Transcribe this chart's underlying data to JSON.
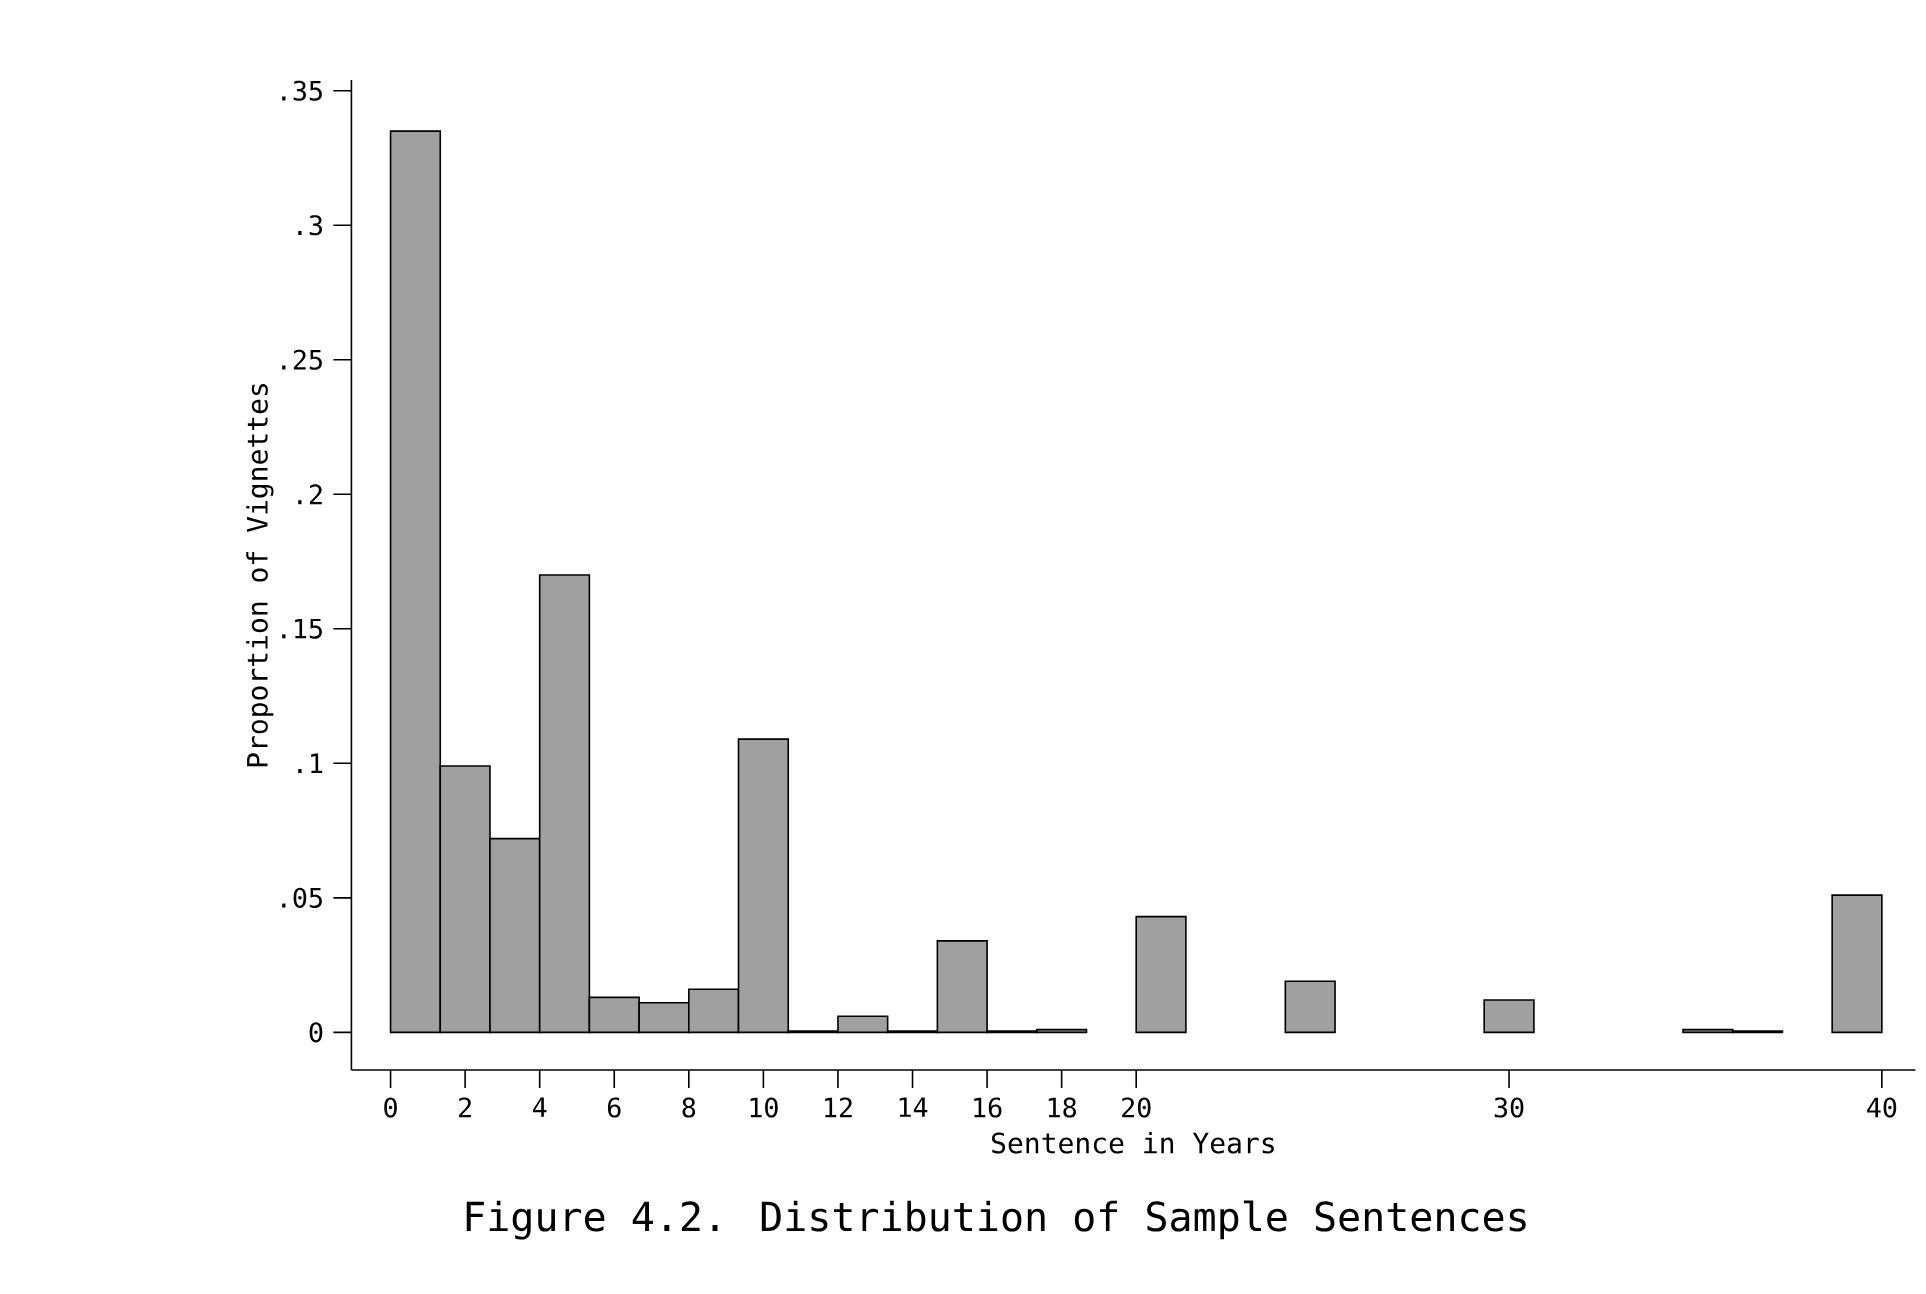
{
  "chart_data": {
    "type": "histogram",
    "title": "Figure 4.2. Distribution of Sample Sentences",
    "xlabel": "Sentence in Years",
    "ylabel": "Proportion of Vignettes",
    "bins": [
      0,
      1.333,
      2.667,
      4,
      5.333,
      6.667,
      8,
      9.333,
      10.667,
      12,
      13.333,
      14.667,
      16,
      17.333,
      18.667,
      20,
      21.333,
      22.667,
      24,
      25.333,
      26.667,
      28,
      29.333,
      30.667,
      32,
      33.333,
      34.667,
      36,
      37.333,
      38.667,
      40
    ],
    "values": [
      0.335,
      0.099,
      0.072,
      0.17,
      0.013,
      0.011,
      0.016,
      0.109,
      0.0005,
      0.006,
      0.0005,
      0.034,
      0.0005,
      0.001,
      0,
      0.043,
      0,
      0,
      0.019,
      0,
      0,
      0,
      0.012,
      0,
      0,
      0,
      0.001,
      0.0005,
      0,
      0.051
    ],
    "color": "#a0a0a0",
    "xlim": [
      -1.05,
      40.9
    ],
    "ylim": [
      -0.014,
      0.354
    ],
    "xticks": [
      0,
      2,
      4,
      6,
      8,
      10,
      12,
      14,
      16,
      18,
      20,
      30,
      40
    ],
    "yticks": [
      0,
      {
        "value": 0.05,
        "label": ".05"
      },
      {
        "value": 0.1,
        "label": ".1"
      },
      {
        "value": 0.15,
        "label": ".15"
      },
      {
        "value": 0.2,
        "label": ".2"
      },
      {
        "value": 0.25,
        "label": ".25"
      },
      {
        "value": 0.3,
        "label": ".3"
      },
      {
        "value": 0.35,
        "label": ".35"
      }
    ]
  }
}
